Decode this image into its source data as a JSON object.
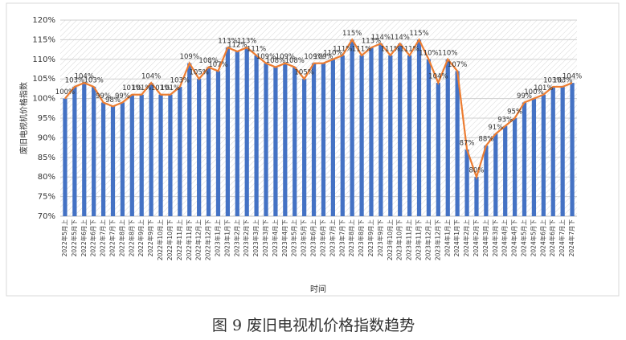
{
  "chart_data": {
    "type": "bar",
    "caption": "图 9  废旧电视机价格指数趋势",
    "y_label": "废旧电视机价格指数",
    "x_label": "时间",
    "categories": [
      "2022年5月上",
      "2022年5月下",
      "2022年6月上",
      "2022年6月下",
      "2022年7月上",
      "2022年7月下",
      "2022年8月上",
      "2022年8月下",
      "2022年9月上",
      "2022年9月下",
      "2022年10月上",
      "2022年10月下",
      "2022年11月上",
      "2022年11月下",
      "2022年12月上",
      "2022年12月下",
      "2023年1月上",
      "2023年1月下",
      "2023年2月上",
      "2023年2月下",
      "2023年3月上",
      "2023年3月下",
      "2023年4月上",
      "2023年4月下",
      "2023年5月上",
      "2023年5月下",
      "2023年6月上",
      "2023年6月下",
      "2023年7月上",
      "2023年7月下",
      "2023年8月上",
      "2023年8月下",
      "2023年9月上",
      "2023年9月下",
      "2023年10月上",
      "2023年10月下",
      "2023年11月上",
      "2023年11月下",
      "2023年12月上",
      "2023年12月下",
      "2024年1月上",
      "2024年1月下",
      "2024年2月上",
      "2024年2月下",
      "2024年3月上",
      "2024年3月下",
      "2024年4月上",
      "2024年4月下",
      "2024年5月上",
      "2024年5月下",
      "2024年6月上",
      "2024年6月下",
      "2024年7月上",
      "2024年7月下"
    ],
    "values": [
      100,
      103,
      104,
      103,
      99,
      98,
      99,
      101,
      101,
      104,
      101,
      101,
      103,
      109,
      105,
      108,
      107,
      113,
      112,
      113,
      111,
      109,
      108,
      109,
      108,
      105,
      109,
      109,
      110,
      111,
      115,
      111,
      113,
      114,
      111,
      114,
      111,
      115,
      110,
      104,
      110,
      107,
      87,
      80,
      88,
      91,
      93,
      95,
      99,
      100,
      101,
      103,
      103,
      104
    ],
    "value_labels": [
      "100%",
      "103%",
      "104%",
      "103%",
      "99%",
      "98%",
      "99%",
      "101%",
      "101%",
      "104%",
      "101%",
      "101%",
      "103%",
      "109%",
      "105%",
      "108%",
      "107%",
      "113%",
      "112%",
      "113%",
      "111%",
      "109%",
      "108%",
      "109%",
      "108%",
      "105%",
      "109%",
      "109%",
      "110%",
      "111%",
      "115%",
      "111%",
      "113%",
      "114%",
      "111%",
      "114%",
      "111%",
      "115%",
      "110%",
      "104%",
      "110%",
      "107%",
      "87%",
      "80%",
      "88%",
      "91%",
      "93%",
      "95%",
      "99%",
      "100%",
      "101%",
      "103%",
      "103%",
      "104%"
    ],
    "color": "#4472c4",
    "line_color": "#ed7d31",
    "ylim": [
      70,
      120
    ],
    "yticks": [
      {
        "value": 70,
        "label": "70%"
      },
      {
        "value": 75,
        "label": "75%"
      },
      {
        "value": 80,
        "label": "80%"
      },
      {
        "value": 85,
        "label": "85%"
      },
      {
        "value": 90,
        "label": "90%"
      },
      {
        "value": 95,
        "label": "95%"
      },
      {
        "value": 100,
        "label": "100%"
      },
      {
        "value": 105,
        "label": "105%"
      },
      {
        "value": 110,
        "label": "110%"
      },
      {
        "value": 115,
        "label": "115%"
      },
      {
        "value": 120,
        "label": "120%"
      }
    ],
    "grid": true
  }
}
